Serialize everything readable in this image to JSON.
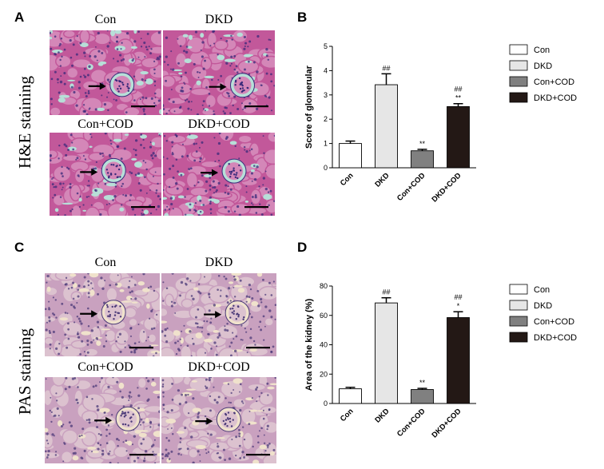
{
  "panels": {
    "A": {
      "letter": "A",
      "stain_label": "H&E staining",
      "images": [
        {
          "title": "Con"
        },
        {
          "title": "DKD"
        },
        {
          "title": "Con+COD"
        },
        {
          "title": "DKD+COD"
        }
      ],
      "colors": {
        "bg": "#c2589a",
        "tubule": "#d487b8",
        "lumen": "#b7dfd8",
        "nuclei": "#3a2a7a"
      }
    },
    "C": {
      "letter": "C",
      "stain_label": "PAS staining",
      "images": [
        {
          "title": "Con"
        },
        {
          "title": "DKD"
        },
        {
          "title": "Con+COD"
        },
        {
          "title": "DKD+COD"
        }
      ],
      "colors": {
        "bg": "#c9a1bf",
        "tubule": "#dcc2cf",
        "lumen": "#f0e2cc",
        "nuclei": "#4b3a78"
      }
    }
  },
  "chart_data": [
    {
      "panel": "B",
      "letter": "B",
      "type": "bar",
      "ylabel": "Score of glomerular",
      "ylim": [
        0,
        5
      ],
      "yticks": [
        "0",
        "1",
        "2",
        "3",
        "4",
        "5"
      ],
      "categories": [
        "Con",
        "DKD",
        "Con+COD",
        "DKD+COD"
      ],
      "values": [
        1.0,
        3.42,
        0.7,
        2.52
      ],
      "errors": [
        0.1,
        0.45,
        0.06,
        0.12
      ],
      "annotations": [
        {
          "upper": "",
          "lower": ""
        },
        {
          "upper": "",
          "lower": "##"
        },
        {
          "upper": "",
          "lower": "**"
        },
        {
          "upper": "##",
          "lower": "**"
        }
      ],
      "legend": [
        "Con",
        "DKD",
        "Con+COD",
        "DKD+COD"
      ],
      "legend_position": "right"
    },
    {
      "panel": "D",
      "letter": "D",
      "type": "bar",
      "ylabel": "Area of the kidney (%)",
      "ylim": [
        0,
        80
      ],
      "yticks": [
        "0",
        "20",
        "40",
        "60",
        "80"
      ],
      "categories": [
        "Con",
        "DKD",
        "Con+COD",
        "DKD+COD"
      ],
      "values": [
        10,
        68.5,
        9.5,
        58.5
      ],
      "errors": [
        1.0,
        3.5,
        0.8,
        4.0
      ],
      "annotations": [
        {
          "upper": "",
          "lower": ""
        },
        {
          "upper": "",
          "lower": "##"
        },
        {
          "upper": "",
          "lower": "**"
        },
        {
          "upper": "##",
          "lower": "*"
        }
      ],
      "legend": [
        "Con",
        "DKD",
        "Con+COD",
        "DKD+COD"
      ],
      "legend_position": "right"
    }
  ],
  "bar_colors": [
    "#ffffff",
    "#e6e6e6",
    "#808080",
    "#231815"
  ]
}
